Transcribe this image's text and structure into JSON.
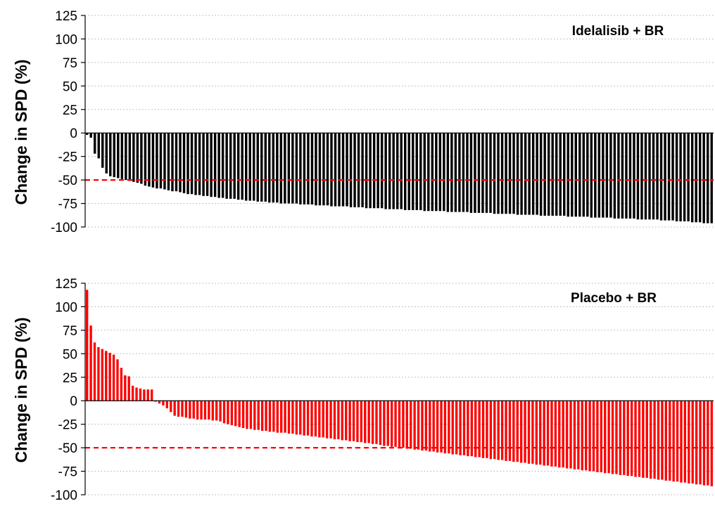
{
  "colors": {
    "idelalisib": "#000000",
    "placebo": "#ff0000",
    "threshold": "#ff0000",
    "grid": "#b0b0b0"
  },
  "chart_data": [
    {
      "type": "bar",
      "title": "Idelalisib + BR",
      "ylabel": "Change in SPD (%)",
      "xlabel": "",
      "ylim": [
        -100,
        125
      ],
      "yticks": [
        "125",
        "100",
        "75",
        "50",
        "25",
        "0",
        "-25",
        "-50",
        "-75",
        "-100"
      ],
      "grid": "horizontal dotted",
      "reference_line": -50,
      "series": [
        {
          "color": "#000000",
          "values": [
            -2,
            -5,
            -22,
            -27,
            -37,
            -43,
            -46,
            -47,
            -48,
            -49,
            -50,
            -51,
            -52,
            -53,
            -54,
            -56,
            -57,
            -58,
            -59,
            -59,
            -60,
            -61,
            -62,
            -62,
            -63,
            -64,
            -65,
            -65,
            -66,
            -66,
            -67,
            -67,
            -68,
            -68,
            -69,
            -69,
            -70,
            -70,
            -70,
            -71,
            -71,
            -72,
            -72,
            -72,
            -73,
            -73,
            -73,
            -74,
            -74,
            -74,
            -75,
            -75,
            -75,
            -75,
            -75,
            -76,
            -76,
            -76,
            -76,
            -77,
            -77,
            -77,
            -77,
            -78,
            -78,
            -78,
            -78,
            -78,
            -79,
            -79,
            -79,
            -79,
            -80,
            -80,
            -80,
            -80,
            -80,
            -81,
            -81,
            -81,
            -81,
            -81,
            -82,
            -82,
            -82,
            -82,
            -82,
            -83,
            -83,
            -83,
            -83,
            -83,
            -83,
            -84,
            -84,
            -84,
            -84,
            -84,
            -84,
            -85,
            -85,
            -85,
            -85,
            -85,
            -85,
            -86,
            -86,
            -86,
            -86,
            -86,
            -86,
            -87,
            -87,
            -87,
            -87,
            -87,
            -87,
            -88,
            -88,
            -88,
            -88,
            -88,
            -88,
            -88,
            -89,
            -89,
            -89,
            -89,
            -89,
            -89,
            -90,
            -90,
            -90,
            -90,
            -90,
            -90,
            -91,
            -91,
            -91,
            -91,
            -91,
            -91,
            -92,
            -92,
            -92,
            -92,
            -92,
            -92,
            -93,
            -93,
            -93,
            -93,
            -94,
            -94,
            -94,
            -94,
            -95,
            -95,
            -95,
            -96,
            -96,
            -96
          ]
        }
      ]
    },
    {
      "type": "bar",
      "title": "Placebo + BR",
      "ylabel": "Change in SPD (%)",
      "xlabel": "",
      "ylim": [
        -100,
        125
      ],
      "yticks": [
        "125",
        "100",
        "75",
        "50",
        "25",
        "0",
        "-25",
        "-50",
        "-75",
        "-100"
      ],
      "grid": "horizontal dotted",
      "reference_line": -50,
      "series": [
        {
          "color": "#ff0000",
          "values": [
            118,
            80,
            62,
            57,
            55,
            53,
            51,
            49,
            44,
            35,
            27,
            26,
            16,
            14,
            13,
            12,
            12,
            12,
            -1,
            -3,
            -5,
            -8,
            -12,
            -16,
            -17,
            -17,
            -18,
            -19,
            -19,
            -20,
            -20,
            -20,
            -20,
            -21,
            -21,
            -22,
            -24,
            -25,
            -26,
            -27,
            -28,
            -29,
            -30,
            -30,
            -31,
            -31,
            -32,
            -32,
            -33,
            -33,
            -34,
            -34,
            -34,
            -35,
            -35,
            -36,
            -36,
            -37,
            -37,
            -38,
            -38,
            -39,
            -39,
            -40,
            -40,
            -41,
            -41,
            -42,
            -42,
            -43,
            -43,
            -44,
            -44,
            -45,
            -45,
            -46,
            -46,
            -47,
            -48,
            -48,
            -49,
            -49,
            -50,
            -50,
            -51,
            -51,
            -52,
            -52,
            -53,
            -53,
            -54,
            -54,
            -55,
            -55,
            -56,
            -56,
            -57,
            -57,
            -58,
            -58,
            -59,
            -59,
            -60,
            -60,
            -61,
            -61,
            -62,
            -62,
            -63,
            -63,
            -64,
            -64,
            -65,
            -65,
            -66,
            -66,
            -67,
            -67,
            -68,
            -68,
            -69,
            -69,
            -70,
            -70,
            -71,
            -71,
            -72,
            -72,
            -73,
            -73,
            -74,
            -74,
            -75,
            -75,
            -76,
            -76,
            -77,
            -77,
            -78,
            -78,
            -79,
            -79,
            -80,
            -80,
            -81,
            -81,
            -82,
            -82,
            -83,
            -83,
            -84,
            -84,
            -85,
            -85,
            -86,
            -86,
            -87,
            -87,
            -88,
            -88,
            -89,
            -89,
            -90,
            -90,
            -91
          ]
        }
      ]
    }
  ]
}
